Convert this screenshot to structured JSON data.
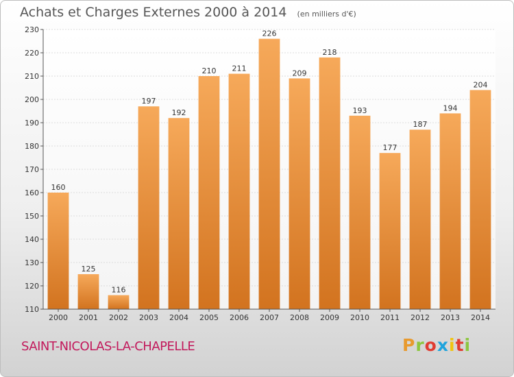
{
  "header": {
    "title": "Achats et Charges Externes 2000 à 2014",
    "unit": "(en milliers d'€)"
  },
  "footer": {
    "commune": "SAINT-NICOLAS-LA-CHAPELLE",
    "logo": {
      "letters": [
        "P",
        "r",
        "o",
        "x",
        "i",
        "t",
        "i"
      ],
      "colors": [
        "#e89a2e",
        "#8cc63f",
        "#e03c31",
        "#1fa3dc",
        "#f1c40f",
        "#e03c31",
        "#8cc63f"
      ]
    }
  },
  "chart_data": {
    "type": "bar",
    "categories": [
      "2000",
      "2001",
      "2002",
      "2003",
      "2004",
      "2005",
      "2006",
      "2007",
      "2008",
      "2009",
      "2010",
      "2011",
      "2012",
      "2013",
      "2014"
    ],
    "values": [
      160,
      125,
      116,
      197,
      192,
      210,
      211,
      226,
      209,
      218,
      193,
      177,
      187,
      194,
      204
    ],
    "title": "Achats et Charges Externes 2000 à 2014",
    "xlabel": "",
    "ylabel": "",
    "ylim": [
      110,
      230
    ],
    "yticks": [
      110,
      120,
      130,
      140,
      150,
      160,
      170,
      180,
      190,
      200,
      210,
      220,
      230
    ],
    "grid": true,
    "bar_color_top": "#f6a95a",
    "bar_color_bottom": "#d2731f"
  }
}
